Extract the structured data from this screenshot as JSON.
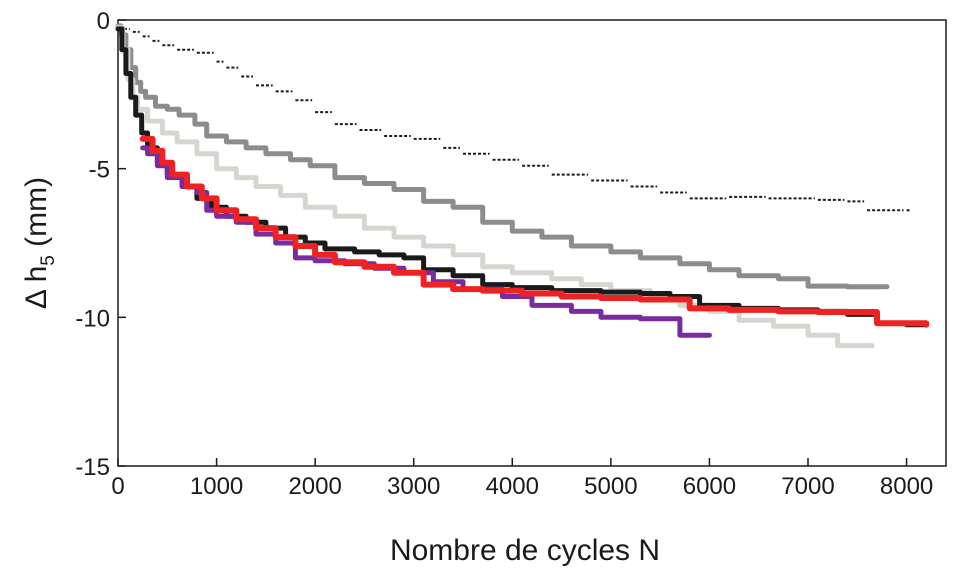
{
  "chart_data": {
    "type": "line",
    "title": "",
    "xlabel": "Nombre de cycles N",
    "ylabel_main": "Δ h",
    "ylabel_sub": "5",
    "ylabel_unit": " (mm)",
    "xlim": [
      0,
      8400
    ],
    "ylim": [
      -15,
      0
    ],
    "xticks": [
      0,
      1000,
      2000,
      3000,
      4000,
      5000,
      6000,
      7000,
      8000
    ],
    "yticks": [
      0,
      -5,
      -10,
      -15
    ],
    "grid": false,
    "legend": "none",
    "series": [
      {
        "color": "#1a1a1a",
        "style": "dash",
        "width": 2,
        "points": [
          [
            0,
            -0.15
          ],
          [
            60,
            -0.3
          ],
          [
            150,
            -0.4
          ],
          [
            250,
            -0.55
          ],
          [
            350,
            -0.7
          ],
          [
            450,
            -0.85
          ],
          [
            600,
            -1.0
          ],
          [
            800,
            -1.1
          ],
          [
            1000,
            -1.4
          ],
          [
            1100,
            -1.6
          ],
          [
            1250,
            -1.9
          ],
          [
            1400,
            -2.2
          ],
          [
            1600,
            -2.4
          ],
          [
            1800,
            -2.7
          ],
          [
            2000,
            -3.1
          ],
          [
            2200,
            -3.5
          ],
          [
            2450,
            -3.7
          ],
          [
            2700,
            -3.9
          ],
          [
            3000,
            -4.0
          ],
          [
            3300,
            -4.3
          ],
          [
            3500,
            -4.5
          ],
          [
            3800,
            -4.7
          ],
          [
            4100,
            -4.9
          ],
          [
            4400,
            -5.2
          ],
          [
            4800,
            -5.4
          ],
          [
            5200,
            -5.6
          ],
          [
            5500,
            -5.8
          ],
          [
            5800,
            -6.0
          ],
          [
            6200,
            -5.95
          ],
          [
            6600,
            -6.0
          ],
          [
            7100,
            -6.05
          ],
          [
            7400,
            -6.1
          ],
          [
            7600,
            -6.4
          ],
          [
            8000,
            -6.4
          ]
        ]
      },
      {
        "color": "#8c8c8c",
        "style": "step",
        "width": 5,
        "points": [
          [
            0,
            -0.2
          ],
          [
            30,
            -0.5
          ],
          [
            80,
            -1.0
          ],
          [
            130,
            -1.6
          ],
          [
            180,
            -2.1
          ],
          [
            230,
            -2.4
          ],
          [
            280,
            -2.6
          ],
          [
            380,
            -2.9
          ],
          [
            500,
            -3.0
          ],
          [
            620,
            -3.2
          ],
          [
            780,
            -3.5
          ],
          [
            900,
            -3.9
          ],
          [
            1100,
            -4.1
          ],
          [
            1300,
            -4.3
          ],
          [
            1500,
            -4.5
          ],
          [
            1750,
            -4.7
          ],
          [
            1950,
            -4.9
          ],
          [
            2200,
            -5.3
          ],
          [
            2500,
            -5.5
          ],
          [
            2800,
            -5.7
          ],
          [
            3100,
            -6.1
          ],
          [
            3400,
            -6.3
          ],
          [
            3700,
            -6.8
          ],
          [
            4000,
            -7.1
          ],
          [
            4300,
            -7.3
          ],
          [
            4600,
            -7.6
          ],
          [
            5000,
            -7.8
          ],
          [
            5300,
            -8.0
          ],
          [
            5700,
            -8.2
          ],
          [
            6000,
            -8.4
          ],
          [
            6300,
            -8.6
          ],
          [
            6700,
            -8.7
          ],
          [
            7000,
            -8.95
          ],
          [
            7400,
            -8.97
          ],
          [
            7800,
            -8.97
          ]
        ]
      },
      {
        "color": "#d6d6d0",
        "style": "step",
        "width": 5,
        "points": [
          [
            0,
            -0.25
          ],
          [
            50,
            -1.0
          ],
          [
            100,
            -2.0
          ],
          [
            150,
            -2.6
          ],
          [
            200,
            -3.0
          ],
          [
            300,
            -3.4
          ],
          [
            450,
            -3.8
          ],
          [
            600,
            -4.1
          ],
          [
            800,
            -4.5
          ],
          [
            1000,
            -5.0
          ],
          [
            1200,
            -5.3
          ],
          [
            1400,
            -5.6
          ],
          [
            1650,
            -5.9
          ],
          [
            1900,
            -6.3
          ],
          [
            2200,
            -6.6
          ],
          [
            2500,
            -7.0
          ],
          [
            2800,
            -7.3
          ],
          [
            3100,
            -7.6
          ],
          [
            3400,
            -7.9
          ],
          [
            3700,
            -8.3
          ],
          [
            4000,
            -8.5
          ],
          [
            4400,
            -8.7
          ],
          [
            4700,
            -8.9
          ],
          [
            5000,
            -9.1
          ],
          [
            5400,
            -9.3
          ],
          [
            5700,
            -9.6
          ],
          [
            6000,
            -9.8
          ],
          [
            6300,
            -10.1
          ],
          [
            6650,
            -10.3
          ],
          [
            7000,
            -10.6
          ],
          [
            7300,
            -10.95
          ],
          [
            7650,
            -10.95
          ]
        ]
      },
      {
        "color": "#1a1a1a",
        "style": "step",
        "width": 5,
        "points": [
          [
            0,
            -0.3
          ],
          [
            40,
            -1.0
          ],
          [
            80,
            -1.8
          ],
          [
            130,
            -2.6
          ],
          [
            180,
            -3.2
          ],
          [
            240,
            -3.8
          ],
          [
            300,
            -4.3
          ],
          [
            400,
            -4.8
          ],
          [
            500,
            -5.2
          ],
          [
            650,
            -5.6
          ],
          [
            800,
            -6.0
          ],
          [
            950,
            -6.3
          ],
          [
            1100,
            -6.6
          ],
          [
            1300,
            -6.8
          ],
          [
            1500,
            -7.0
          ],
          [
            1700,
            -7.3
          ],
          [
            1900,
            -7.5
          ],
          [
            2100,
            -7.7
          ],
          [
            2400,
            -7.8
          ],
          [
            2650,
            -7.9
          ],
          [
            2900,
            -8.0
          ],
          [
            3100,
            -8.4
          ],
          [
            3400,
            -8.6
          ],
          [
            3700,
            -8.9
          ],
          [
            4000,
            -9.0
          ],
          [
            4400,
            -9.1
          ],
          [
            4900,
            -9.15
          ],
          [
            5300,
            -9.2
          ],
          [
            5600,
            -9.3
          ],
          [
            5900,
            -9.6
          ],
          [
            6300,
            -9.7
          ],
          [
            6700,
            -9.75
          ],
          [
            7100,
            -9.8
          ],
          [
            7400,
            -9.9
          ],
          [
            7700,
            -10.2
          ],
          [
            8000,
            -10.25
          ],
          [
            8200,
            -10.25
          ]
        ]
      },
      {
        "color": "#7a2c9e",
        "style": "step",
        "width": 5,
        "points": [
          [
            250,
            -4.3
          ],
          [
            300,
            -4.5
          ],
          [
            400,
            -4.9
          ],
          [
            500,
            -5.3
          ],
          [
            650,
            -5.6
          ],
          [
            800,
            -5.8
          ],
          [
            900,
            -6.4
          ],
          [
            1000,
            -6.6
          ],
          [
            1200,
            -6.8
          ],
          [
            1400,
            -7.2
          ],
          [
            1600,
            -7.5
          ],
          [
            1800,
            -8.0
          ],
          [
            2000,
            -8.1
          ],
          [
            2300,
            -8.2
          ],
          [
            2600,
            -8.35
          ],
          [
            2900,
            -8.5
          ],
          [
            3200,
            -8.8
          ],
          [
            3500,
            -9.05
          ],
          [
            3900,
            -9.3
          ],
          [
            4200,
            -9.6
          ],
          [
            4600,
            -9.8
          ],
          [
            4900,
            -10.0
          ],
          [
            5300,
            -10.05
          ],
          [
            5700,
            -10.6
          ],
          [
            6000,
            -10.6
          ]
        ]
      },
      {
        "color": "#ee2222",
        "style": "step",
        "width": 6,
        "points": [
          [
            250,
            -4.0
          ],
          [
            350,
            -4.4
          ],
          [
            450,
            -4.8
          ],
          [
            550,
            -5.2
          ],
          [
            700,
            -5.6
          ],
          [
            850,
            -6.0
          ],
          [
            1000,
            -6.4
          ],
          [
            1200,
            -6.7
          ],
          [
            1400,
            -7.0
          ],
          [
            1600,
            -7.3
          ],
          [
            1800,
            -7.6
          ],
          [
            2000,
            -7.9
          ],
          [
            2200,
            -8.15
          ],
          [
            2500,
            -8.3
          ],
          [
            2800,
            -8.5
          ],
          [
            3100,
            -8.9
          ],
          [
            3400,
            -9.05
          ],
          [
            3700,
            -9.1
          ],
          [
            4100,
            -9.2
          ],
          [
            4500,
            -9.3
          ],
          [
            4900,
            -9.35
          ],
          [
            5300,
            -9.4
          ],
          [
            5800,
            -9.7
          ],
          [
            6200,
            -9.75
          ],
          [
            6700,
            -9.8
          ],
          [
            7100,
            -9.82
          ],
          [
            7700,
            -10.2
          ],
          [
            8200,
            -10.25
          ]
        ]
      }
    ]
  }
}
